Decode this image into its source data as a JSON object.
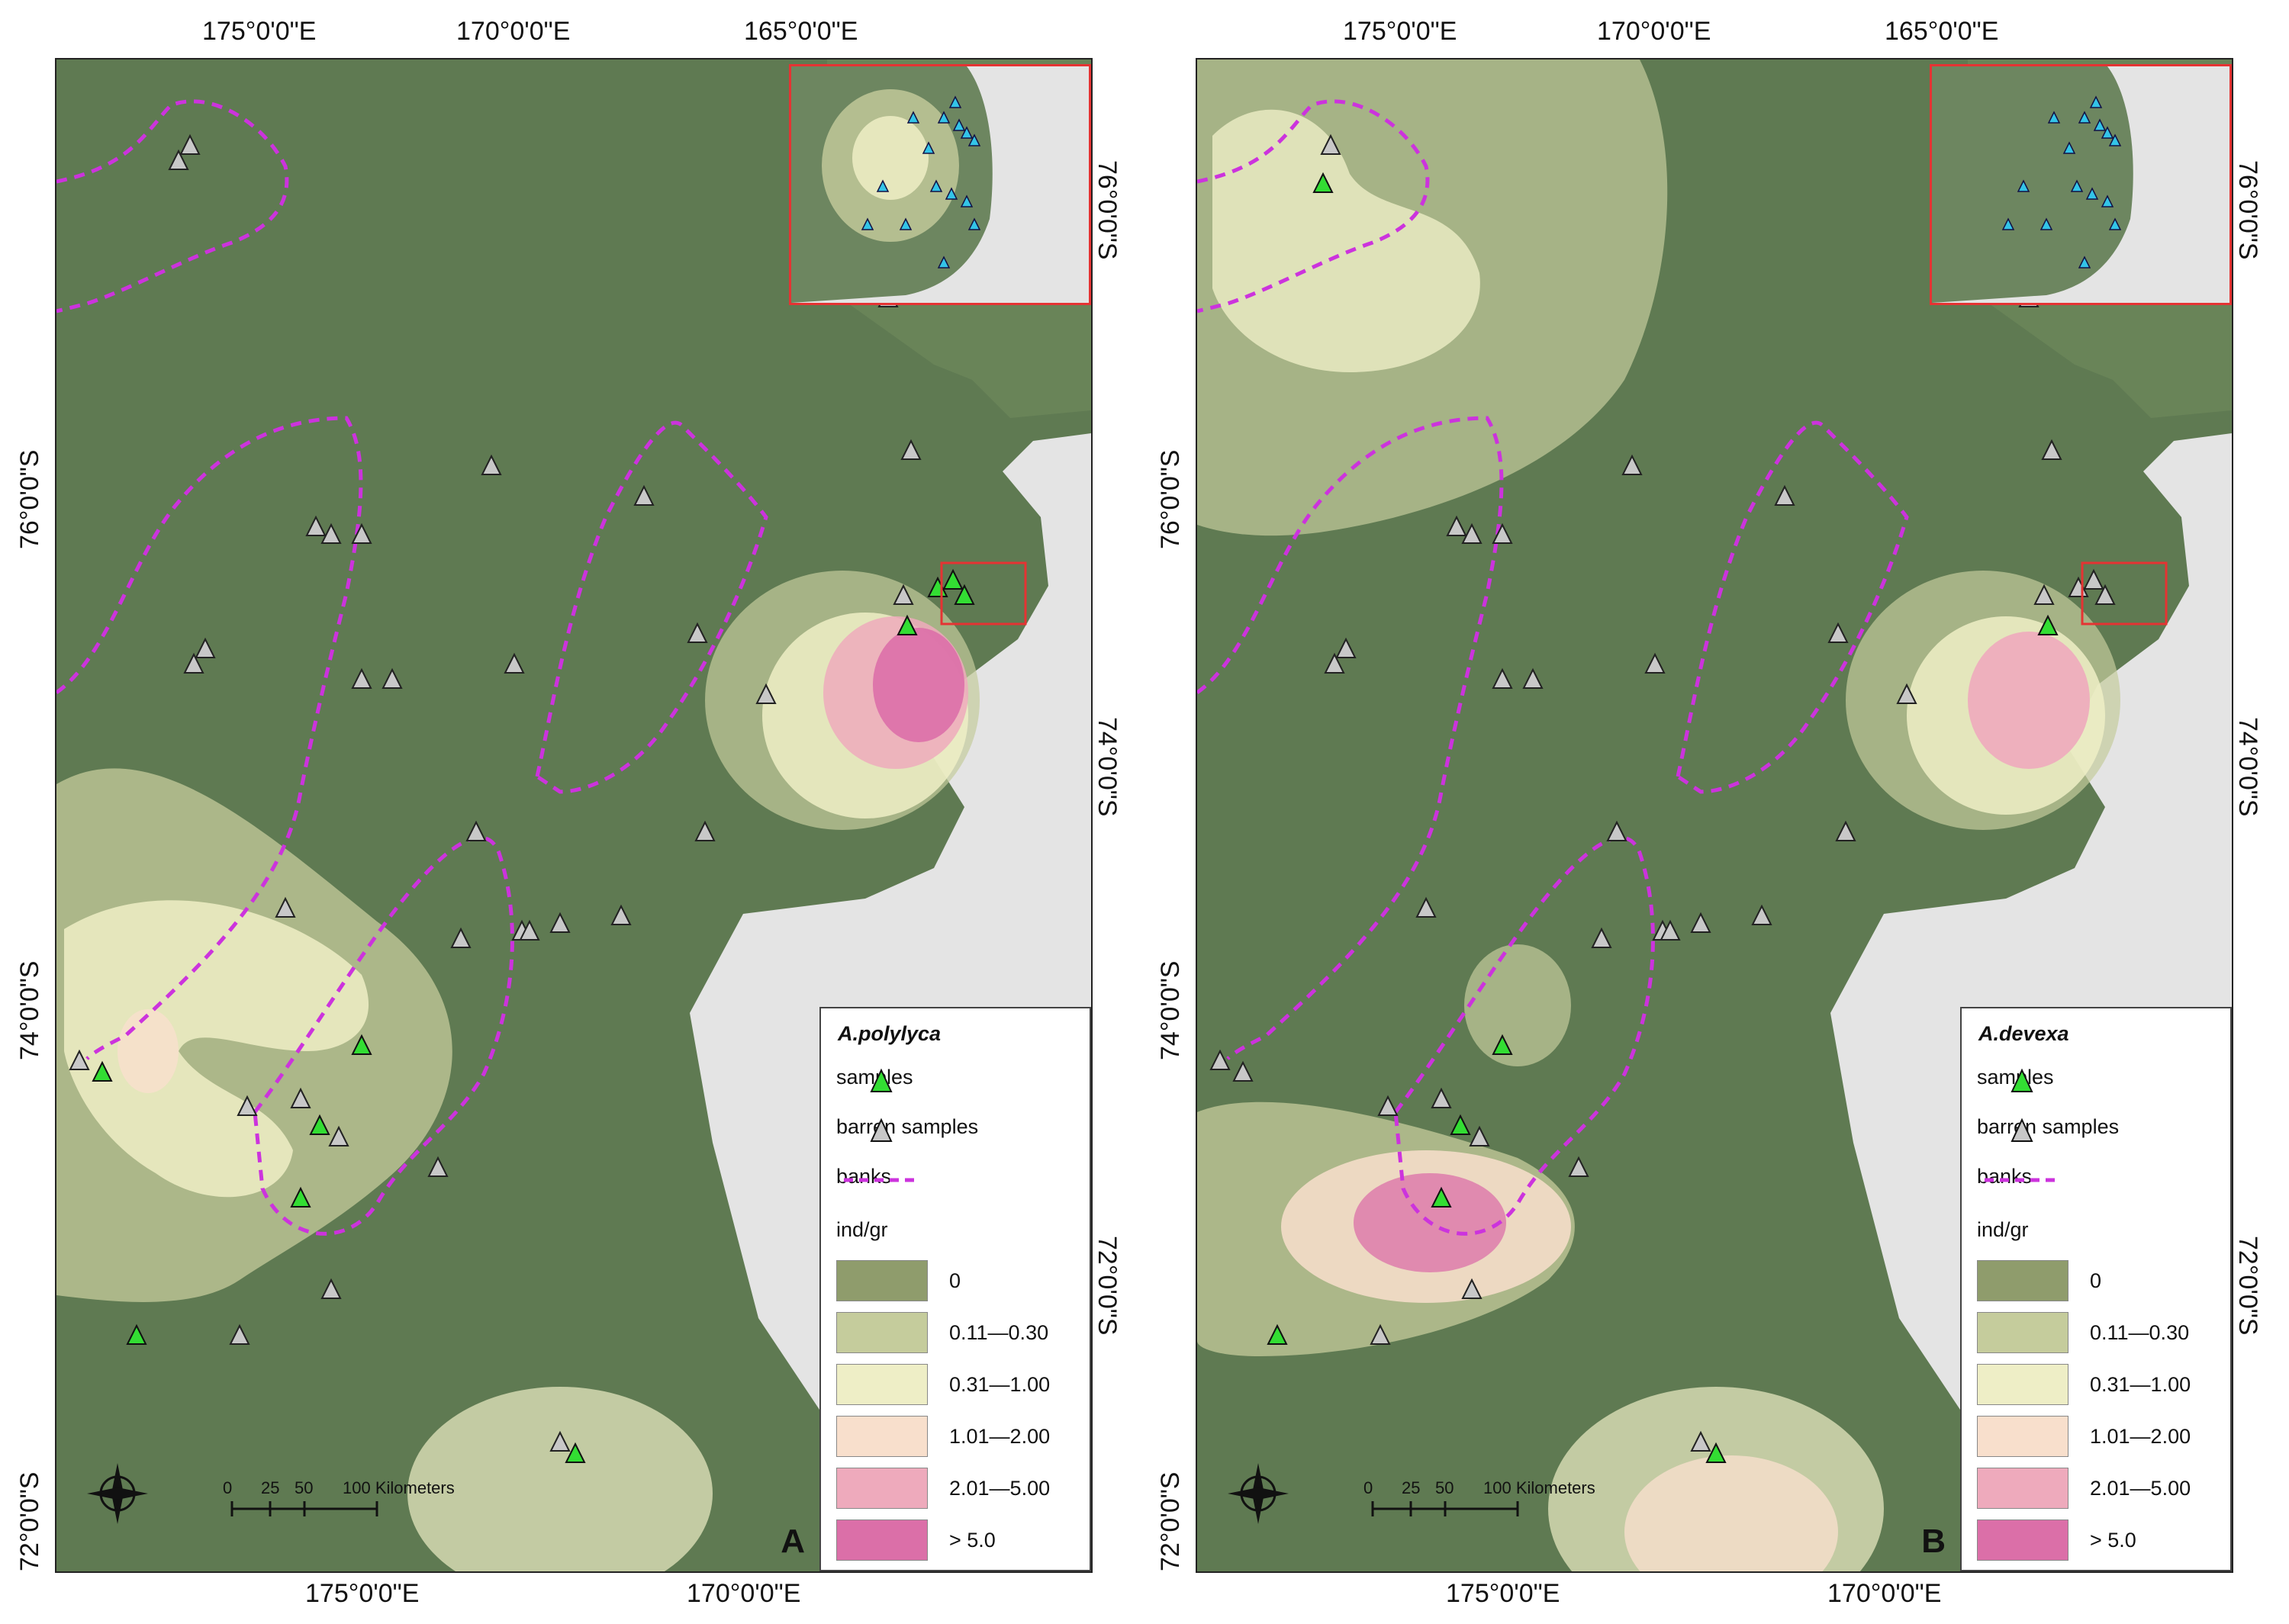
{
  "panels": [
    {
      "letter": "A",
      "species": "A.polylyca",
      "top_ticks": [
        "175°0'0\"E",
        "170°0'0\"E",
        "165°0'0\"E"
      ],
      "bottom_ticks": [
        "175°0'0\"E",
        "170°0'0\"E"
      ],
      "left_ticks": [
        "76°0'0\"S",
        "74°0'0\"S",
        "72°0'0\"S"
      ],
      "right_ticks": [
        "76°0'0\"S",
        "74°0'0\"S",
        "72°0'0\"S"
      ]
    },
    {
      "letter": "B",
      "species": "A.devexa",
      "top_ticks": [
        "175°0'0\"E",
        "170°0'0\"E",
        "165°0'0\"E"
      ],
      "bottom_ticks": [
        "175°0'0\"E",
        "170°0'0\"E"
      ],
      "left_ticks": [
        "76°0'0\"S",
        "74°0'0\"S",
        "72°0'0\"S"
      ],
      "right_ticks": [
        "76°0'0\"S",
        "74°0'0\"S",
        "72°0'0\"S"
      ]
    }
  ],
  "legend": {
    "samples_label": "samples",
    "barren_label": "barren samples",
    "banks_label": "banks",
    "unit_label": "ind/gr",
    "classes": [
      {
        "label": "0",
        "color": "#8f9c6c"
      },
      {
        "label": "0.11—0.30",
        "color": "#c5cc9c"
      },
      {
        "label": "0.31—1.00",
        "color": "#eeeec6"
      },
      {
        "label": "1.01—2.00",
        "color": "#f8dfcc"
      },
      {
        "label": "2.01—5.00",
        "color": "#eeaabc"
      },
      {
        "label": "> 5.0",
        "color": "#db6fa8"
      }
    ]
  },
  "scalebar": {
    "ticks": [
      "0",
      "25",
      "50",
      "100 Kilometers"
    ]
  },
  "colors": {
    "sea": "#5f7a52",
    "land": "#e4e4e4",
    "banks": "#cc33dd",
    "sample": "#33dd33",
    "barren": "#c8c8c8",
    "inset_sample": "#33c4e8",
    "inset_frame": "#e53333"
  }
}
